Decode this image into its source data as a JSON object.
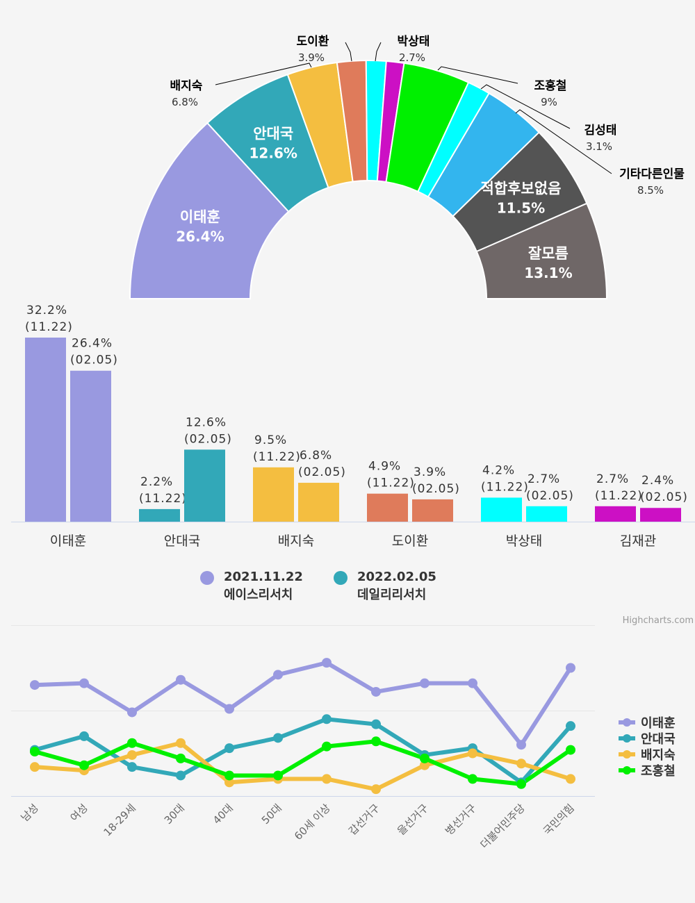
{
  "colors": {
    "이태훈": "#9999e0",
    "안대국": "#32a8b8",
    "배지숙": "#f4be40",
    "도이환": "#df7b5b",
    "박상태": "#00ffff",
    "김재관": "#cc10c4",
    "조홍철": "#00f000",
    "김성태": "#00ffff",
    "기타다른인물": "#33b5ee",
    "적합후보없음": "#545454",
    "잘모름": "#6f6767"
  },
  "chart_data": [
    {
      "type": "pie",
      "variant": "semi-donut",
      "slices": [
        {
          "name": "이태훈",
          "value": 26.4,
          "label_inside": true,
          "pct_text": "26.4%"
        },
        {
          "name": "안대국",
          "value": 12.6,
          "label_inside": true,
          "pct_text": "12.6%"
        },
        {
          "name": "배지숙",
          "value": 6.8,
          "label_inside": false,
          "pct_text": "6.8%"
        },
        {
          "name": "도이환",
          "value": 3.9,
          "label_inside": false,
          "pct_text": "3.9%"
        },
        {
          "name": "박상태",
          "value": 2.7,
          "label_inside": false,
          "pct_text": "2.7%",
          "color_key": "박상태"
        },
        {
          "name": "김재관",
          "value": 2.4,
          "label_inside": null,
          "pct_text": "",
          "color_key": "김재관"
        },
        {
          "name": "조홍철",
          "value": 9,
          "label_inside": false,
          "pct_text": "9%"
        },
        {
          "name": "김성태",
          "value": 3.1,
          "label_inside": false,
          "pct_text": "3.1%"
        },
        {
          "name": "기타다른인물",
          "value": 8.5,
          "label_inside": false,
          "pct_text": "8.5%"
        },
        {
          "name": "적합후보없음",
          "value": 11.5,
          "label_inside": true,
          "pct_text": "11.5%"
        },
        {
          "name": "잘모름",
          "value": 13.1,
          "label_inside": true,
          "pct_text": "13.1%"
        }
      ]
    },
    {
      "type": "bar",
      "categories": [
        "이태훈",
        "안대국",
        "배지숙",
        "도이환",
        "박상태",
        "김재관"
      ],
      "series": [
        {
          "name": "2021.11.22 에이스리서치",
          "date": "(11.22)",
          "values": [
            32.2,
            2.2,
            9.5,
            4.9,
            4.2,
            2.7
          ]
        },
        {
          "name": "2022.02.05 데일리리서치",
          "date": "(02.05)",
          "values": [
            26.4,
            12.6,
            6.8,
            3.9,
            2.7,
            2.4
          ]
        }
      ],
      "ylim": [
        0,
        35
      ]
    },
    {
      "type": "line",
      "categories": [
        "남성",
        "여성",
        "18-29세",
        "30대",
        "40대",
        "50대",
        "60세 이상",
        "갑선거구",
        "을선거구",
        "병선거구",
        "더불어민주당",
        "국민의힘"
      ],
      "series": [
        {
          "name": "이태훈",
          "values": [
            32.5,
            33,
            24.5,
            34,
            25.5,
            35.5,
            39,
            30.5,
            33,
            33,
            15,
            37.5
          ]
        },
        {
          "name": "안대국",
          "values": [
            13.5,
            17.5,
            8.5,
            6,
            14,
            17,
            22.5,
            21,
            12,
            14,
            4,
            20.5
          ]
        },
        {
          "name": "배지숙",
          "values": [
            8.5,
            7.5,
            12,
            15.5,
            4,
            5,
            5,
            2,
            9,
            12.5,
            9.5,
            5
          ]
        },
        {
          "name": "조홍철",
          "values": [
            13,
            9,
            15.5,
            11,
            6,
            6,
            14.5,
            16,
            11,
            5,
            3.5,
            13.5
          ]
        }
      ],
      "ylim": [
        0,
        50
      ]
    }
  ],
  "legend": {
    "items": [
      {
        "line1": "2021.11.22",
        "line2": "에이스리서치"
      },
      {
        "line1": "2022.02.05",
        "line2": "데일리리서치"
      }
    ]
  },
  "credit": "Highcharts.com"
}
